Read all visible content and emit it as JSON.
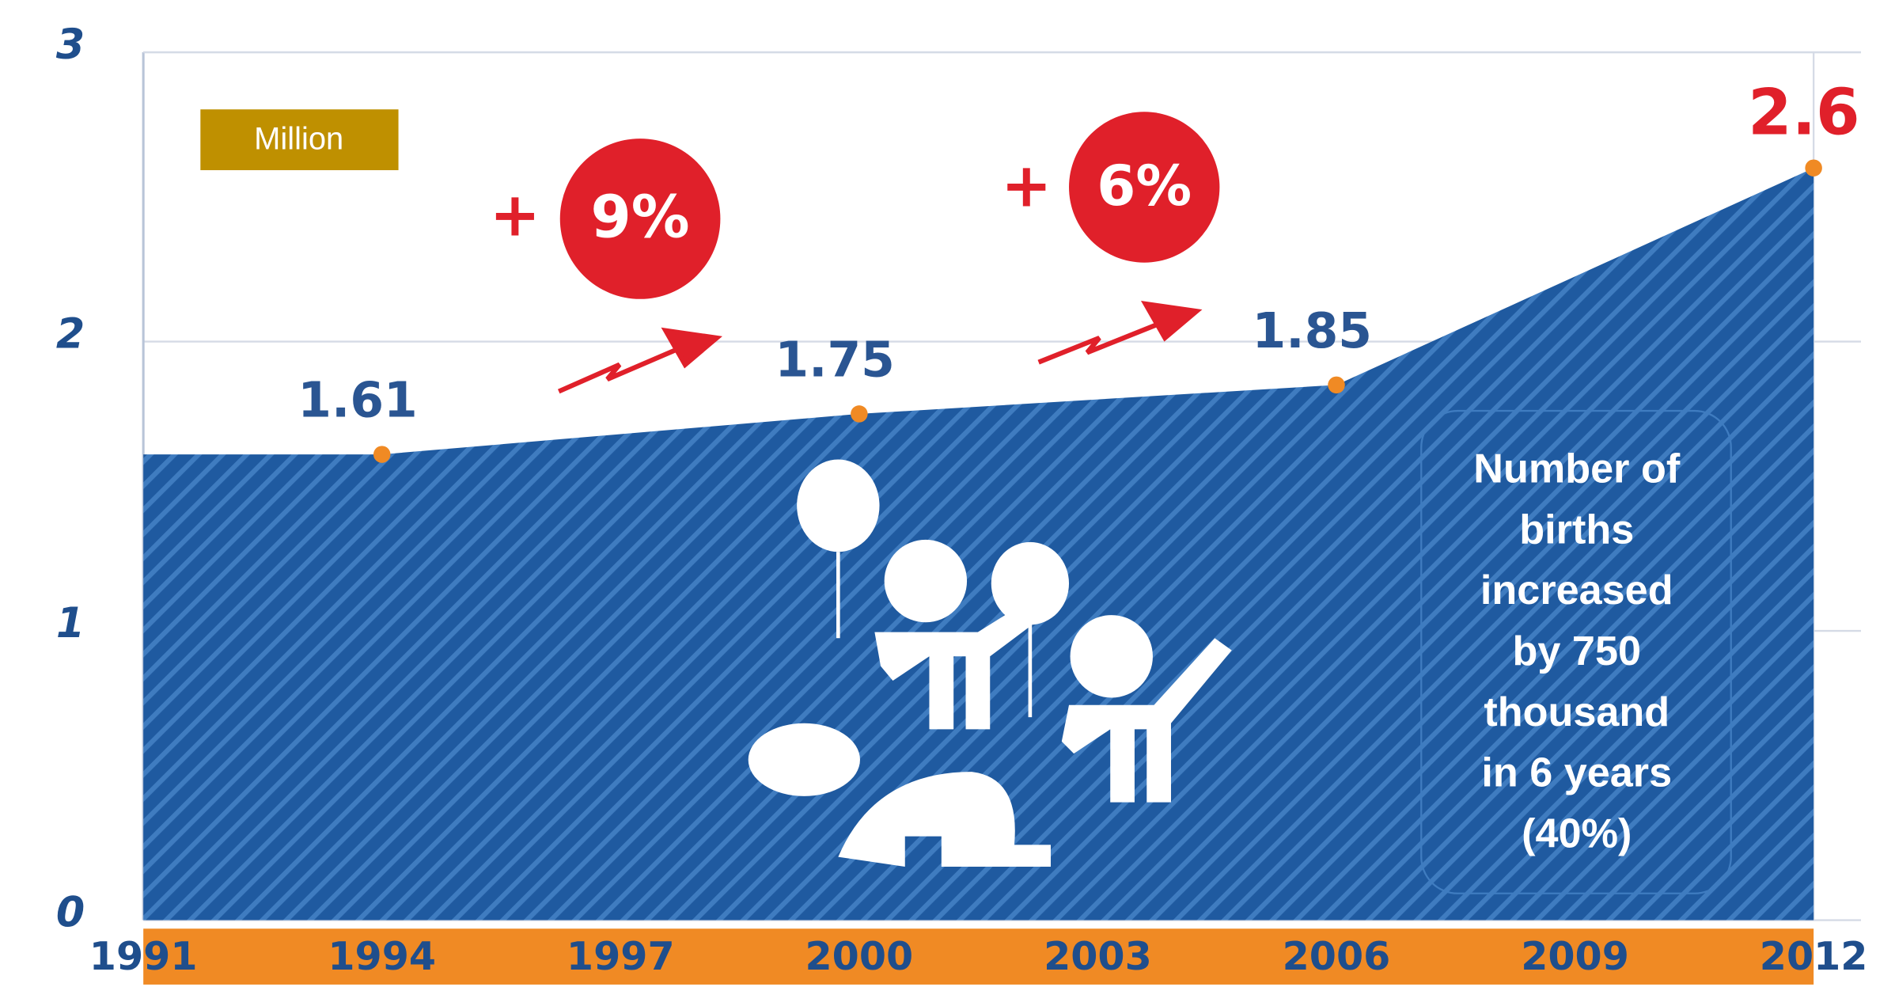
{
  "chart_data": {
    "type": "area",
    "unit_label": "Million",
    "x": [
      1991,
      1994,
      2000,
      2006,
      2012
    ],
    "values": [
      1.61,
      1.61,
      1.75,
      1.85,
      2.6
    ],
    "value_labels": [
      null,
      "1.61",
      "1.75",
      "1.85",
      "2.6"
    ],
    "color": "#1f5aa0",
    "xlim": [
      1991,
      2012
    ],
    "xticks": [
      1991,
      1994,
      1997,
      2000,
      2003,
      2006,
      2009,
      2012
    ],
    "ylim": [
      0,
      3
    ],
    "yticks": [
      0,
      1,
      2,
      3
    ],
    "grid": true,
    "growth_labels": [
      {
        "sign": "+",
        "text": "9%"
      },
      {
        "sign": "+",
        "text": "6%"
      }
    ],
    "note_lines": [
      "Number of",
      "births",
      "increased",
      "by 750",
      "thousand",
      "in 6 years",
      "(40%)"
    ]
  }
}
